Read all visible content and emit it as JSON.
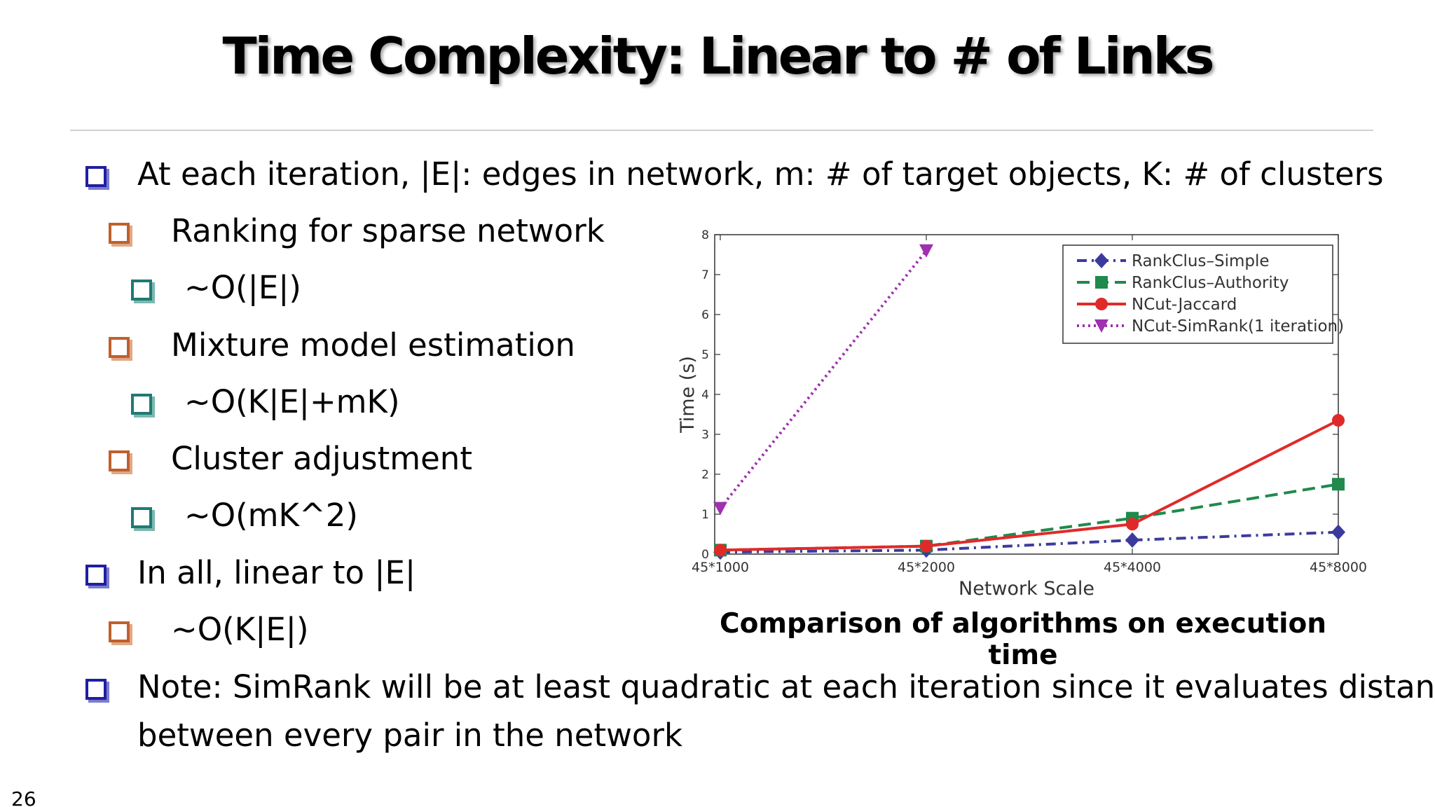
{
  "slide": {
    "title": "Time Complexity: Linear to # of Links",
    "page_number": "26",
    "bullets": [
      {
        "level": 1,
        "text": "At each iteration, |E|: edges in network, m: # of target objects, K: # of clusters"
      },
      {
        "level": 2,
        "text": "Ranking for sparse network"
      },
      {
        "level": 3,
        "text": "~O(|E|)"
      },
      {
        "level": 2,
        "text": "Mixture model estimation"
      },
      {
        "level": 3,
        "text": "~O(K|E|+mK)"
      },
      {
        "level": 2,
        "text": "Cluster adjustment"
      },
      {
        "level": 3,
        "text": "~O(mK^2)"
      },
      {
        "level": 1,
        "text": "In all, linear to |E|"
      },
      {
        "level": 2,
        "text": "~O(K|E|)"
      },
      {
        "level": 1,
        "text": "Note: SimRank will be at least quadratic at each iteration since it evaluates distance"
      },
      {
        "level": 0,
        "text": "between every pair in the network"
      }
    ],
    "chart_caption": "Comparison of algorithms on execution time"
  },
  "chart_data": {
    "type": "line",
    "title": "",
    "xlabel": "Network Scale",
    "ylabel": "Time (s)",
    "categories": [
      "45*1000",
      "45*2000",
      "45*4000",
      "45*8000"
    ],
    "y_ticks": [
      "0",
      "1",
      "2",
      "3",
      "4",
      "5",
      "6",
      "7",
      "8"
    ],
    "ylim": [
      0,
      8
    ],
    "legend_position": "top-right",
    "grid": false,
    "series": [
      {
        "name": "RankClus–Simple",
        "color": "#3b3b9e",
        "marker": "diamond",
        "dash": "dashdot",
        "values": [
          0.05,
          0.1,
          0.35,
          0.55
        ]
      },
      {
        "name": "RankClus–Authority",
        "color": "#1f8a4c",
        "marker": "square",
        "dash": "dashed",
        "values": [
          0.1,
          0.2,
          0.9,
          1.75
        ]
      },
      {
        "name": "NCut-Jaccard",
        "color": "#e02a2a",
        "marker": "circle",
        "dash": "solid",
        "values": [
          0.1,
          0.2,
          0.75,
          3.35
        ]
      },
      {
        "name": "NCut-SimRank(1 iteration)",
        "color": "#a030b0",
        "marker": "triangle-down",
        "dash": "dotted",
        "values": [
          1.15,
          7.6,
          null,
          null
        ]
      }
    ]
  }
}
